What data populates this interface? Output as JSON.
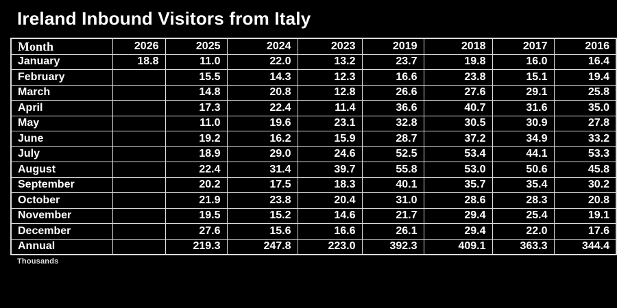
{
  "title": "Ireland Inbound Visitors from Italy",
  "footnote": "Thousands",
  "colors": {
    "background": "#000000",
    "text": "#ffffff",
    "border": "#dcdcdc"
  },
  "chart_data": {
    "type": "table",
    "title": "Ireland Inbound Visitors from Italy",
    "unit_note": "Thousands",
    "columns": [
      "Month",
      "2026",
      "2025",
      "2024",
      "2023",
      "2019",
      "2018",
      "2017",
      "2016"
    ],
    "rows": [
      {
        "label": "January",
        "values": [
          "18.8",
          "11.0",
          "22.0",
          "13.2",
          "23.7",
          "19.8",
          "16.0",
          "16.4"
        ]
      },
      {
        "label": "February",
        "values": [
          "",
          "15.5",
          "14.3",
          "12.3",
          "16.6",
          "23.8",
          "15.1",
          "19.4"
        ]
      },
      {
        "label": "March",
        "values": [
          "",
          "14.8",
          "20.8",
          "12.8",
          "26.6",
          "27.6",
          "29.1",
          "25.8"
        ]
      },
      {
        "label": "April",
        "values": [
          "",
          "17.3",
          "22.4",
          "11.4",
          "36.6",
          "40.7",
          "31.6",
          "35.0"
        ]
      },
      {
        "label": "May",
        "values": [
          "",
          "11.0",
          "19.6",
          "23.1",
          "32.8",
          "30.5",
          "30.9",
          "27.8"
        ]
      },
      {
        "label": "June",
        "values": [
          "",
          "19.2",
          "16.2",
          "15.9",
          "28.7",
          "37.2",
          "34.9",
          "33.2"
        ]
      },
      {
        "label": "July",
        "values": [
          "",
          "18.9",
          "29.0",
          "24.6",
          "52.5",
          "53.4",
          "44.1",
          "53.3"
        ]
      },
      {
        "label": "August",
        "values": [
          "",
          "22.4",
          "31.4",
          "39.7",
          "55.8",
          "53.0",
          "50.6",
          "45.8"
        ]
      },
      {
        "label": "September",
        "values": [
          "",
          "20.2",
          "17.5",
          "18.3",
          "40.1",
          "35.7",
          "35.4",
          "30.2"
        ]
      },
      {
        "label": "October",
        "values": [
          "",
          "21.9",
          "23.8",
          "20.4",
          "31.0",
          "28.6",
          "28.3",
          "20.8"
        ]
      },
      {
        "label": "November",
        "values": [
          "",
          "19.5",
          "15.2",
          "14.6",
          "21.7",
          "29.4",
          "25.4",
          "19.1"
        ]
      },
      {
        "label": "December",
        "values": [
          "",
          "27.6",
          "15.6",
          "16.6",
          "26.1",
          "29.4",
          "22.0",
          "17.6"
        ]
      },
      {
        "label": "Annual",
        "values": [
          "",
          "219.3",
          "247.8",
          "223.0",
          "392.3",
          "409.1",
          "363.3",
          "344.4"
        ]
      }
    ]
  }
}
